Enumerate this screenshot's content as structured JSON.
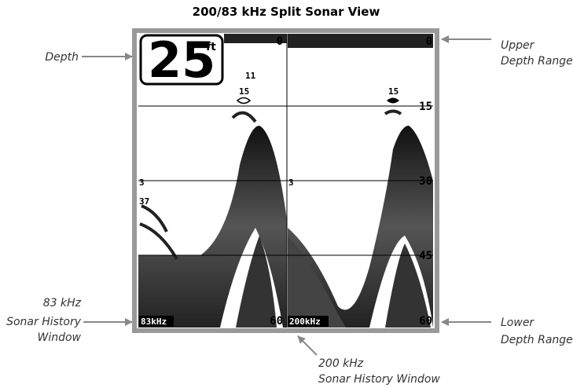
{
  "title": "200/83 kHz Split Sonar View",
  "callouts": [
    {
      "lines": [
        "Depth"
      ]
    },
    {
      "lines": [
        "Upper",
        "Depth Range"
      ]
    },
    {
      "lines": [
        "83 kHz",
        "Sonar History",
        "Window"
      ]
    },
    {
      "lines": [
        "Lower",
        "Depth Range"
      ]
    },
    {
      "lines": [
        "200 kHz",
        "Sonar History Window"
      ]
    }
  ],
  "screen": {
    "depth": "25",
    "depth_unit": "ft",
    "left_panel": {
      "upper_range": "0",
      "lower_range": "60",
      "frequency": "83kHz",
      "fish_labels": [
        "11",
        "15",
        "3",
        "37"
      ]
    },
    "right_panel": {
      "upper_range": "0",
      "lower_range": "60",
      "frequency": "200kHz",
      "fish_labels": [
        "15",
        "3"
      ],
      "depth_marks": [
        "15",
        "30",
        "45"
      ]
    }
  }
}
